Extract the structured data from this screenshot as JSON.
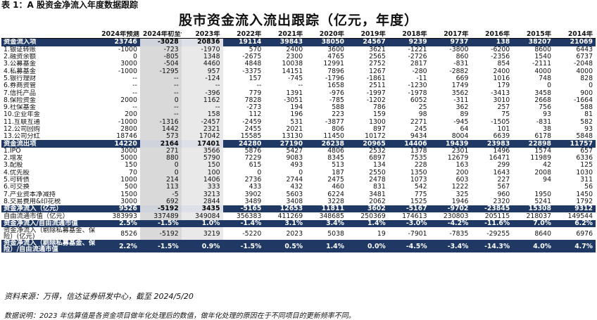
{
  "caption": "表 1：A 股资金净流入年度数据跟踪",
  "title": "股市资金流入流出跟踪（亿元，年度）",
  "columns": [
    "",
    "2024年预测",
    "2024年初至今",
    "2023年",
    "2022年",
    "2021年",
    "2020年",
    "2019年",
    "2018年",
    "2017年",
    "2016年",
    "2015年",
    "2014年"
  ],
  "rows": [
    {
      "type": "band",
      "label": "资金流入项",
      "values": [
        "23746",
        "-3028",
        "20836",
        "19114",
        "39843",
        "38050",
        "24567",
        "9239",
        "9737",
        "138",
        "38207",
        "21069"
      ]
    },
    {
      "type": "item",
      "label": "1.银证转账",
      "values": [
        "-1000",
        "-723",
        "-1970",
        "570",
        "2400",
        "3600",
        "3621",
        "-1221",
        "-3800",
        "-6200",
        "8600",
        "6443"
      ]
    },
    {
      "type": "item",
      "label": "2.融资余额",
      "values": [
        "0",
        "-805",
        "1348",
        "-2675",
        "2300",
        "4765",
        "2565",
        "-2726",
        "860",
        "-2356",
        "1540",
        "6737"
      ]
    },
    {
      "type": "item",
      "label": "3.公募基金",
      "values": [
        "3000",
        "-504",
        "4460",
        "4848",
        "10038",
        "12991",
        "2752",
        "2817",
        "-831",
        "854",
        "-2111",
        "-2048"
      ]
    },
    {
      "type": "item",
      "label": "4.私募基金",
      "values": [
        "-1000",
        "-1295",
        "957",
        "-3375",
        "14151",
        "7896",
        "1267",
        "-280",
        "-2882",
        "2400",
        "4000",
        "4000"
      ]
    },
    {
      "type": "item",
      "label": "5.银行理财",
      "values": [
        "--",
        "--",
        "-124",
        "157",
        "-745",
        "-1796",
        "-1861",
        "-11",
        "669",
        "1016",
        "748",
        "828"
      ]
    },
    {
      "type": "item",
      "label": "6.券商资管",
      "values": [
        "--",
        "--",
        "--",
        "--",
        "--",
        "1658",
        "2511",
        "-1230",
        "1749",
        "179",
        "0",
        "0"
      ]
    },
    {
      "type": "item",
      "label": "7.信托产品",
      "values": [
        "--",
        "--",
        "-396",
        "779",
        "1391",
        "-976",
        "-1997",
        "-1978",
        "3562",
        "-3413",
        "3458",
        "900"
      ]
    },
    {
      "type": "item",
      "label": "8.保险资金",
      "values": [
        "2000",
        "0",
        "1162",
        "7828",
        "-3051",
        "-785",
        "-1202",
        "6052",
        "-311",
        "3010",
        "2668",
        "-1664"
      ]
    },
    {
      "type": "item",
      "label": "9.社保基金",
      "values": [
        "--",
        "--",
        "--",
        "-273",
        "194",
        "588",
        "786",
        "25",
        "362",
        "257",
        "756",
        "588"
      ]
    },
    {
      "type": "item",
      "label": "10.企业年金",
      "values": [
        "200",
        "--",
        "158",
        "112",
        "196",
        "223",
        "159",
        "98",
        "89",
        "75",
        "93",
        "81"
      ]
    },
    {
      "type": "item",
      "label": "11.互联互通",
      "values": [
        "-1000",
        "-1316",
        "-2457",
        "-2459",
        "531",
        "-3877",
        "1300",
        "2271",
        "-945",
        "-1505",
        "-831",
        "582"
      ]
    },
    {
      "type": "item",
      "label": "12.公司回购",
      "values": [
        "2800",
        "1442",
        "2321",
        "2455",
        "2021",
        "806",
        "897",
        "245",
        "64",
        "101",
        "38",
        "93"
      ]
    },
    {
      "type": "item",
      "label": "13.公司分红",
      "values": [
        "18746",
        "573",
        "17042",
        "15585",
        "13130",
        "11450",
        "10172",
        "9434",
        "8004",
        "6639",
        "6178",
        "5848"
      ]
    },
    {
      "type": "band",
      "label": "资金流出项",
      "values": [
        "14220",
        "2164",
        "17401",
        "24280",
        "27190",
        "26238",
        "20965",
        "14406",
        "19439",
        "23983",
        "22898",
        "11757"
      ]
    },
    {
      "type": "item",
      "label": "1.IPO",
      "values": [
        "3000",
        "271",
        "3566",
        "5876",
        "5427",
        "4806",
        "2532",
        "1378",
        "2301",
        "1496",
        "1574",
        "657"
      ]
    },
    {
      "type": "item",
      "label": "2.增发",
      "values": [
        "5000",
        "880",
        "5790",
        "7229",
        "9083",
        "8345",
        "6897",
        "7535",
        "12679",
        "16471",
        "11989",
        "6336"
      ]
    },
    {
      "type": "item",
      "label": "3.配股",
      "values": [
        "150",
        "0",
        "150",
        "615",
        "493",
        "513",
        "134",
        "228",
        "163",
        "299",
        "42",
        "125"
      ]
    },
    {
      "type": "item",
      "label": "4.优先股",
      "values": [
        "70",
        "0",
        "100",
        "0",
        "0",
        "187",
        "2550",
        "1350",
        "200",
        "1643",
        "2008",
        "1030"
      ]
    },
    {
      "type": "item",
      "label": "5.可转债",
      "values": [
        "1000",
        "214",
        "1406",
        "2736",
        "2744",
        "2475",
        "2478",
        "1073",
        "603",
        "227",
        "94",
        "311"
      ]
    },
    {
      "type": "item",
      "label": "6.可交换",
      "values": [
        "500",
        "113",
        "333",
        "433",
        "432",
        "460",
        "831",
        "542",
        "1222",
        "567",
        "",
        "56"
      ]
    },
    {
      "type": "item",
      "label": "7.产业资本净减持",
      "values": [
        "1500",
        "-5",
        "3213",
        "3902",
        "5603",
        "6224",
        "3481",
        "775",
        "325",
        "960",
        "1950",
        "1450"
      ]
    },
    {
      "type": "item",
      "label": "8.交易费用&印花税",
      "values": [
        "3000",
        "692",
        "2844",
        "3489",
        "3408",
        "3228",
        "2062",
        "1525",
        "1946",
        "2320",
        "5241",
        "1792"
      ]
    },
    {
      "type": "band",
      "label": "资金净流入（亿元）",
      "values": [
        "9526",
        "-5192",
        "3435",
        "-5165",
        "12653",
        "11811",
        "3602",
        "-5167",
        "-9702",
        "-23845",
        "15308",
        "9312"
      ]
    },
    {
      "type": "plain",
      "label": "自由流通市值（亿元）",
      "values": [
        "383993",
        "337489",
        "349084",
        "356383",
        "411269",
        "348685",
        "250369",
        "174613",
        "230803",
        "205115",
        "218037",
        "149544"
      ]
    },
    {
      "type": "shade",
      "label": "资金净流入/自由流通市值",
      "values": [
        "2.5%",
        "-1.5%",
        "1.0%",
        "-1.4%",
        "3.1%",
        "3.4%",
        "1.4%",
        "-3.0%",
        "-4.2%",
        "-11.6%",
        "7.0%",
        "6.2%"
      ]
    },
    {
      "type": "tall",
      "label": "资金净流入（剔除私募基金、保险）(亿元)",
      "values": [
        "8526",
        "-5192",
        "3219",
        "-5220",
        "2023",
        "5038",
        "19",
        "-7901",
        "-7835",
        "-29255",
        "8640",
        "6976"
      ]
    },
    {
      "type": "tallshade",
      "label": "资金净流入（剔除私募基金、保险）/自由流通市值",
      "values": [
        "2.2%",
        "-1.5%",
        "0.9%",
        "-1.5%",
        "0.5%",
        "1.4%",
        "0.0%",
        "-4.5%",
        "-3.4%",
        "-14.3%",
        "4.0%",
        "4.7%"
      ]
    }
  ],
  "source": "资料来源：万得，信达证券研发中心，截至 2024/5/20",
  "note": "数据说明：2023 年估算值是各资金项目做年化处理后的数值，做年化处理的原因在于不同项目的更新频率不同。",
  "colors": {
    "band": "#1f3864",
    "shade1": "#d9d9d9",
    "shade2": "#e9e9e9"
  }
}
